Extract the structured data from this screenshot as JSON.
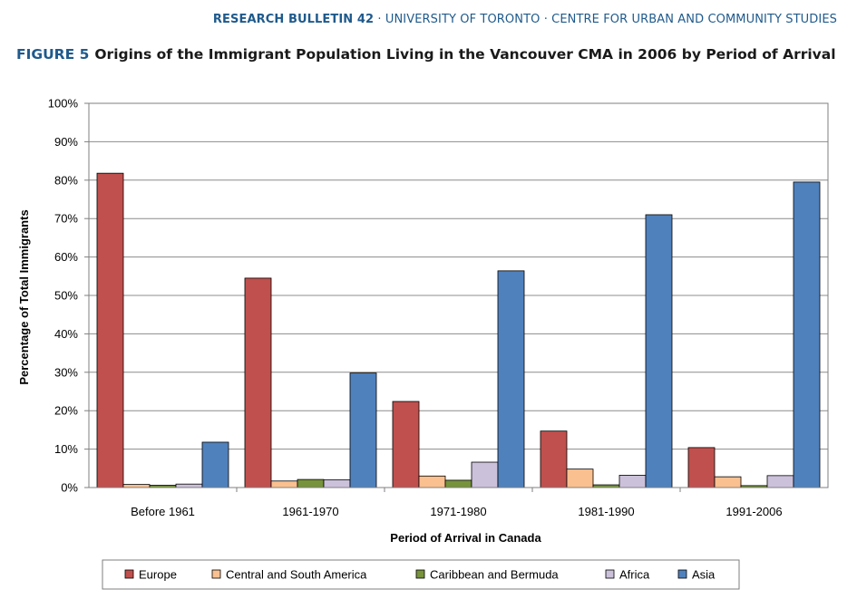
{
  "header": {
    "bulletin": "RESEARCH BULLETIN 42",
    "rest": " · UNIVERSITY OF TORONTO · CENTRE FOR URBAN AND COMMUNITY STUDIES"
  },
  "figure": {
    "label": "FIGURE 5",
    "title": "Origins of the Immigrant Population Living in the Vancouver CMA in 2006 by Period of Arrival"
  },
  "chart_data": {
    "type": "bar",
    "xlabel": "Period of Arrival in Canada",
    "ylabel": "Percentage of Total Immigrants",
    "ylim": [
      0,
      100
    ],
    "yticks": [
      "0%",
      "10%",
      "20%",
      "30%",
      "40%",
      "50%",
      "60%",
      "70%",
      "80%",
      "90%",
      "100%"
    ],
    "grid": true,
    "legend_position": "bottom",
    "categories": [
      "Before 1961",
      "1961-1970",
      "1971-1980",
      "1981-1990",
      "1991-2006"
    ],
    "series": [
      {
        "name": "Europe",
        "color": "#c0504d",
        "values": [
          81.8,
          54.5,
          22.4,
          14.7,
          10.4
        ]
      },
      {
        "name": "Central and South America",
        "color": "#fac090",
        "values": [
          0.8,
          1.7,
          3.0,
          4.8,
          2.8
        ]
      },
      {
        "name": "Caribbean and Bermuda",
        "color": "#77933c",
        "values": [
          0.6,
          2.1,
          1.9,
          0.7,
          0.5
        ]
      },
      {
        "name": "Africa",
        "color": "#ccc1da",
        "values": [
          0.9,
          2.0,
          6.6,
          3.2,
          3.1
        ]
      },
      {
        "name": "Asia",
        "color": "#4f81bd",
        "values": [
          11.8,
          29.8,
          56.4,
          71.0,
          79.5
        ]
      }
    ]
  }
}
